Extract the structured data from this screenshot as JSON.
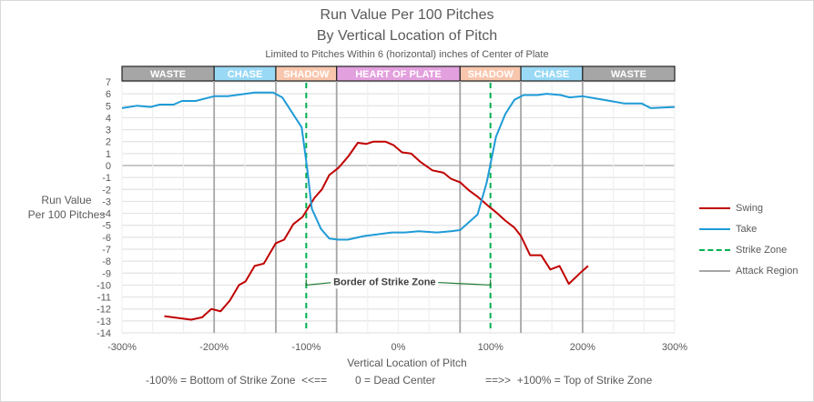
{
  "chart_data": {
    "type": "line",
    "title": "Run Value Per 100 Pitches",
    "subtitle": "By Vertical Location of Pitch",
    "subtitle2": "Limited to Pitches Within 6 (horizontal) inches of Center of Plate",
    "xlabel": "Vertical Location of Pitch",
    "ylabel_lines": [
      "Run Value",
      "Per 100 Pitches"
    ],
    "xlim": [
      -300,
      300
    ],
    "ylim": [
      -14,
      7
    ],
    "x_ticks": [
      -300,
      -200,
      -100,
      0,
      100,
      200,
      300
    ],
    "x_tick_labels": [
      "-300%",
      "-200%",
      "-100%",
      "0%",
      "100%",
      "200%",
      "300%"
    ],
    "y_ticks": [
      7,
      6,
      5,
      4,
      3,
      2,
      1,
      0,
      -1,
      -2,
      -3,
      -4,
      -5,
      -6,
      -7,
      -8,
      -9,
      -10,
      -11,
      -12,
      -13,
      -14
    ],
    "grid": true,
    "legend_position": "right",
    "regions": [
      {
        "label": "WASTE",
        "from": -300,
        "to": -200,
        "color": "#a6a6a6"
      },
      {
        "label": "CHASE",
        "from": -200,
        "to": -133,
        "color": "#99d9f5"
      },
      {
        "label": "SHADOW",
        "from": -133,
        "to": -67,
        "color": "#f8c6ad"
      },
      {
        "label": "HEART OF PLATE",
        "from": -67,
        "to": 67,
        "color": "#e3a0de"
      },
      {
        "label": "SHADOW",
        "from": 67,
        "to": 133,
        "color": "#f8c6ad"
      },
      {
        "label": "CHASE",
        "from": 133,
        "to": 200,
        "color": "#99d9f5"
      },
      {
        "label": "WASTE",
        "from": 200,
        "to": 300,
        "color": "#a6a6a6"
      }
    ],
    "attack_region_lines": [
      -200,
      -133,
      -67,
      67,
      133,
      200
    ],
    "strike_zone_lines": [
      -100,
      100
    ],
    "annotation": {
      "text": "Border of Strike Zone",
      "y": -10,
      "from": -100,
      "to": 100
    },
    "series": [
      {
        "name": "Swing",
        "color": "#c00000",
        "x": [
          -254,
          -225,
          -213,
          -203,
          -193,
          -183,
          -173,
          -166,
          -156,
          -146,
          -133,
          -124,
          -114,
          -104,
          -91,
          -83,
          -75,
          -65,
          -54,
          -44,
          -35,
          -27,
          -14,
          -5,
          4,
          14,
          24,
          37,
          49,
          57,
          67,
          77,
          86,
          98,
          106,
          116,
          126,
          133,
          143,
          155,
          165,
          175,
          185,
          200,
          206
        ],
        "values": [
          -12.6,
          -12.9,
          -12.7,
          -12.0,
          -12.2,
          -11.3,
          -10.0,
          -9.7,
          -8.4,
          -8.2,
          -6.5,
          -6.2,
          -4.9,
          -4.3,
          -2.7,
          -2.0,
          -0.8,
          -0.2,
          0.8,
          1.9,
          1.8,
          2.0,
          2.0,
          1.7,
          1.1,
          1.0,
          0.3,
          -0.4,
          -0.6,
          -1.1,
          -1.4,
          -2.1,
          -2.6,
          -3.4,
          -3.9,
          -4.6,
          -5.2,
          -5.9,
          -7.5,
          -7.5,
          -8.7,
          -8.4,
          -9.9,
          -8.8,
          -8.4
        ]
      },
      {
        "name": "Take",
        "color": "#1f9bd7",
        "x": [
          -300,
          -284,
          -269,
          -259,
          -244,
          -235,
          -220,
          -200,
          -185,
          -166,
          -156,
          -136,
          -126,
          -105,
          -99,
          -94,
          -84,
          -75,
          -65,
          -55,
          -37,
          -7,
          7,
          22,
          42,
          57,
          67,
          86,
          96,
          106,
          116,
          126,
          136,
          151,
          161,
          176,
          186,
          200,
          215,
          230,
          245,
          264,
          274,
          300
        ],
        "values": [
          4.8,
          5.0,
          4.9,
          5.1,
          5.1,
          5.4,
          5.4,
          5.8,
          5.8,
          6.0,
          6.1,
          6.1,
          5.7,
          3.2,
          -0.2,
          -3.6,
          -5.3,
          -6.1,
          -6.2,
          -6.2,
          -5.9,
          -5.6,
          -5.6,
          -5.5,
          -5.6,
          -5.5,
          -5.4,
          -4.1,
          -1.4,
          2.4,
          4.3,
          5.5,
          5.9,
          5.9,
          6.0,
          5.9,
          5.7,
          5.8,
          5.6,
          5.4,
          5.2,
          5.2,
          4.8,
          4.9
        ]
      }
    ],
    "legend": [
      {
        "label": "Swing",
        "style": "solid",
        "color": "#c00000"
      },
      {
        "label": "Take",
        "style": "solid",
        "color": "#1f9bd7"
      },
      {
        "label": "Strike Zone",
        "style": "dashed",
        "color": "#00b050"
      },
      {
        "label": "Attack Region",
        "style": "solid",
        "color": "#a6a6a6"
      }
    ]
  },
  "footer": {
    "left": "-100% = Bottom of Strike Zone  <<==",
    "center": "0 = Dead Center",
    "right": "==>>  +100% = Top of Strike Zone"
  }
}
